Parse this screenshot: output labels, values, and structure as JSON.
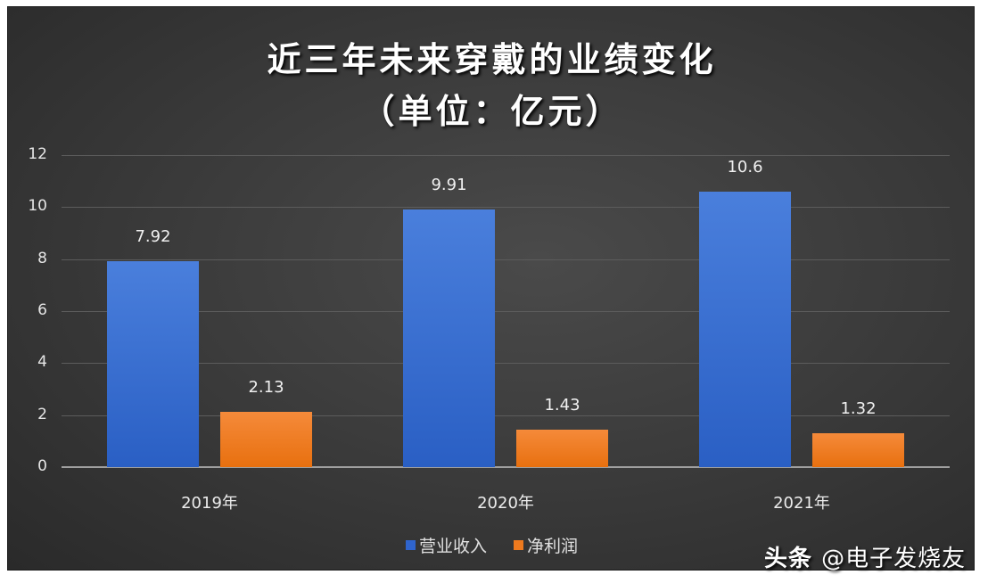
{
  "chart_data": {
    "type": "bar",
    "title": "近三年未来穿戴的业绩变化",
    "subtitle": "（单位：亿元）",
    "categories": [
      "2019年",
      "2020年",
      "2021年"
    ],
    "series": [
      {
        "name": "营业收入",
        "color": "#2f64cc",
        "values": [
          7.92,
          9.91,
          10.6
        ],
        "labels": [
          "7.92",
          "9.91",
          "10.6"
        ]
      },
      {
        "name": "净利润",
        "color": "#ee7a1e",
        "values": [
          2.13,
          1.43,
          1.32
        ],
        "labels": [
          "2.13",
          "1.43",
          "1.32"
        ]
      }
    ],
    "xlabel": "",
    "ylabel": "",
    "ylim": [
      0,
      12
    ],
    "yticks": [
      "0",
      "2",
      "4",
      "6",
      "8",
      "10",
      "12"
    ],
    "grid": true,
    "legend_position": "bottom"
  },
  "watermark": {
    "brand": "头条",
    "handle": "@电子发烧友"
  }
}
